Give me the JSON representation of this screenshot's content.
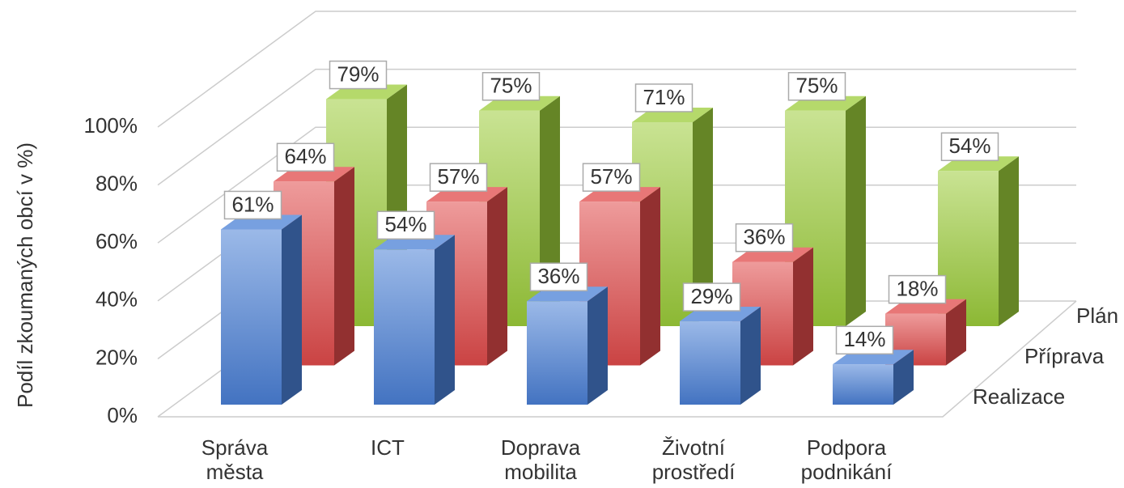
{
  "chart_data": {
    "type": "bar3d",
    "y_axis_label": "Podíl zkoumaných obcí v %)",
    "categories": [
      "Správa města",
      "ICT",
      "Doprava mobilita",
      "Životní prostředí",
      "Podpora podnikání"
    ],
    "series": [
      {
        "name": "Realizace",
        "color": "#4a80d6",
        "values": [
          61,
          54,
          36,
          29,
          14
        ],
        "value_labels": [
          "61%",
          "54%",
          "36%",
          "29%",
          "14%"
        ]
      },
      {
        "name": "Příprava",
        "color": "#e04a4a",
        "values": [
          64,
          57,
          57,
          36,
          18
        ],
        "value_labels": [
          "64%",
          "57%",
          "57%",
          "36%",
          "18%"
        ]
      },
      {
        "name": "Plán",
        "color": "#9ccc3a",
        "values": [
          79,
          75,
          71,
          75,
          54
        ],
        "value_labels": [
          "79%",
          "75%",
          "71%",
          "75%",
          "54%"
        ]
      }
    ],
    "ylim": [
      0,
      100
    ],
    "yticks": [
      {
        "value": 0,
        "label": "0%"
      },
      {
        "value": 20,
        "label": "20%"
      },
      {
        "value": 40,
        "label": "40%"
      },
      {
        "value": 60,
        "label": "60%"
      },
      {
        "value": 80,
        "label": "80%"
      },
      {
        "value": 100,
        "label": "100%"
      }
    ],
    "grid": true
  }
}
